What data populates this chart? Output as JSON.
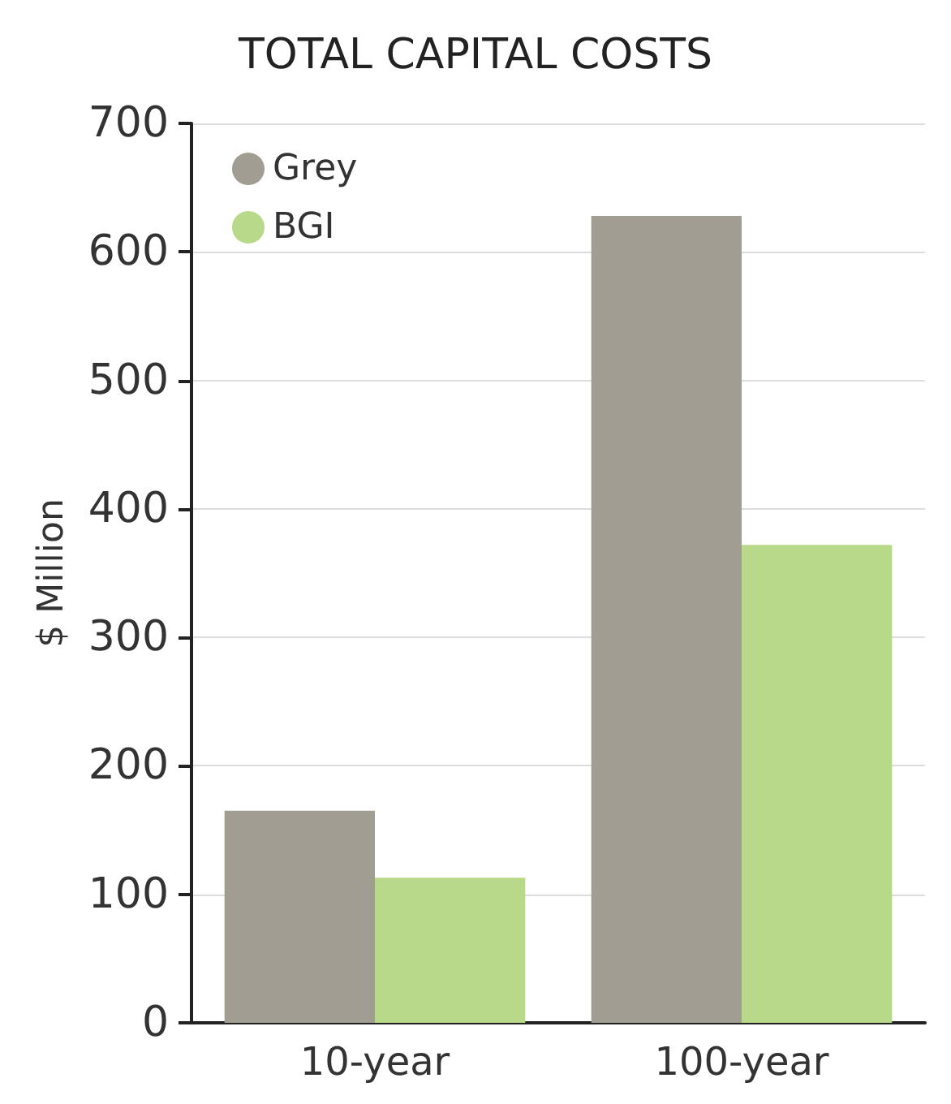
{
  "chart_data": {
    "type": "bar",
    "title": "TOTAL CAPITAL COSTS",
    "ylabel": "$ Million",
    "categories": [
      "10-year",
      "100-year"
    ],
    "series": [
      {
        "name": "Grey",
        "color": "#a19d92",
        "values": [
          165,
          628
        ]
      },
      {
        "name": "BGI",
        "color": "#b9d98a",
        "values": [
          113,
          372
        ]
      }
    ],
    "ylim": [
      0,
      700
    ],
    "yticks": [
      0,
      100,
      200,
      300,
      400,
      500,
      600,
      700
    ],
    "grid": "y",
    "legend": "top left"
  }
}
